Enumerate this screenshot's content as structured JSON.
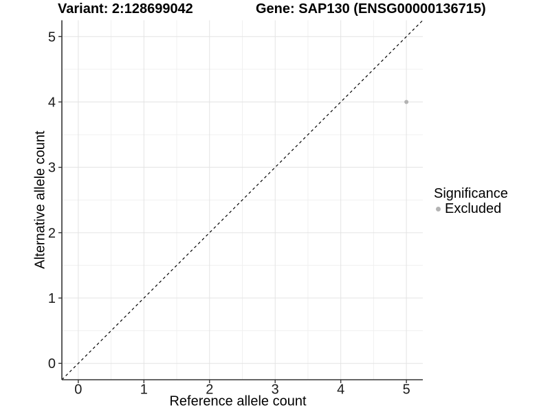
{
  "titles": {
    "variant": "Variant: 2:128699042",
    "gene": "Gene: SAP130 (ENSG00000136715)"
  },
  "chart_data": {
    "type": "scatter",
    "title": "Variant: 2:128699042   Gene: SAP130 (ENSG00000136715)",
    "xlabel": "Reference allele count",
    "ylabel": "Alternative allele count",
    "xlim": [
      -0.25,
      5.25
    ],
    "ylim": [
      -0.25,
      5.25
    ],
    "x_ticks": [
      0,
      1,
      2,
      3,
      4,
      5
    ],
    "y_ticks": [
      0,
      1,
      2,
      3,
      4,
      5
    ],
    "x_minor_ticks": [
      0.5,
      1.5,
      2.5,
      3.5,
      4.5
    ],
    "y_minor_ticks": [
      0.5,
      1.5,
      2.5,
      3.5,
      4.5
    ],
    "grid": true,
    "points": [
      {
        "x": 5,
        "y": 4,
        "series": "Excluded"
      }
    ],
    "reference_line": {
      "type": "identity",
      "style": "dashed",
      "from": [
        -0.25,
        -0.25
      ],
      "to": [
        5.25,
        5.25
      ]
    },
    "legend": {
      "title": "Significance",
      "position": "right",
      "items": [
        {
          "label": "Excluded",
          "color": "#b3b3b3"
        }
      ]
    },
    "colors": {
      "point": "#b3b3b3",
      "grid_major": "#e3e3e3",
      "grid_minor": "#f0f0f0",
      "axis_line": "#333333",
      "tick_mark": "#333333",
      "tick_label": "#1a1a1a",
      "reference_line": "#000000",
      "background": "#ffffff"
    }
  }
}
